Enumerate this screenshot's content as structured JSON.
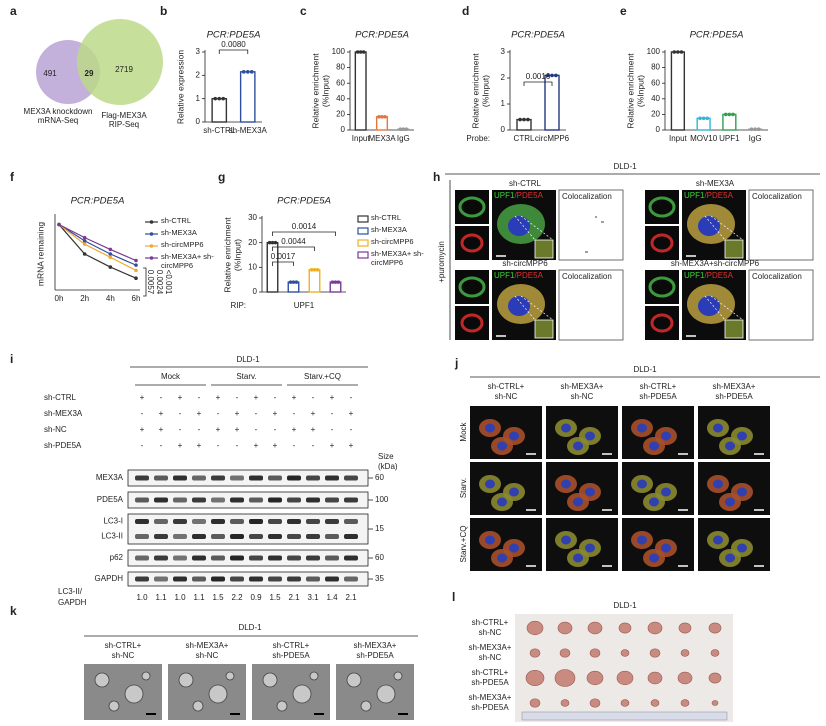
{
  "a": {
    "letter": "a",
    "left_count": 491,
    "overlap_count": 29,
    "right_count": 2719,
    "left_label": [
      "MEX3A knockdown",
      "mRNA-Seq"
    ],
    "right_label": [
      "Flag-MEX3A",
      "RIP-Seq"
    ]
  },
  "b": {
    "letter": "b",
    "type": "bar",
    "title": "PCR:PDE5A",
    "ylabel": [
      "Relative expression"
    ],
    "categories": [
      "sh-CTRL",
      "sh-MEX3A"
    ],
    "values": [
      1,
      2.15
    ],
    "colors": [
      "#333333",
      "#2e4f9e"
    ],
    "ylim": [
      0,
      3
    ],
    "yticks": [
      0,
      1,
      2,
      3
    ],
    "significance": [
      "0.0080"
    ]
  },
  "c": {
    "letter": "c",
    "type": "bar",
    "title": "PCR:PDE5A",
    "ylabel": [
      "Relative enrichment",
      "(%Input)"
    ],
    "categories": [
      "Input",
      "MEX3A",
      "IgG"
    ],
    "values": [
      100,
      17,
      1
    ],
    "colors": [
      "#333333",
      "#e8763a",
      "#999999"
    ],
    "ylim": [
      0,
      100
    ],
    "yticks": [
      0,
      20,
      40,
      60,
      80,
      100
    ]
  },
  "d": {
    "letter": "d",
    "type": "bar",
    "title": "PCR:PDE5A",
    "ylabel": [
      "Relative enrichment",
      "(%Input)"
    ],
    "axis_prefix": "Probe:",
    "categories": [
      "CTRL",
      "circMPP6"
    ],
    "values": [
      0.4,
      2.1
    ],
    "colors": [
      "#333333",
      "#23397e"
    ],
    "ylim": [
      0,
      3
    ],
    "yticks": [
      0,
      1,
      2,
      3
    ],
    "significance": [
      "0.0016"
    ]
  },
  "e": {
    "letter": "e",
    "type": "bar",
    "title": "PCR:PDE5A",
    "ylabel": [
      "Relative enrichment",
      "(%Input)"
    ],
    "categories": [
      "Input",
      "MOV10",
      "UPF1",
      "IgG"
    ],
    "values": [
      100,
      15,
      20,
      1
    ],
    "colors": [
      "#333333",
      "#2fb7d8",
      "#2ea04e",
      "#999999"
    ],
    "ylim": [
      0,
      100
    ],
    "yticks": [
      0,
      20,
      40,
      60,
      80,
      100
    ]
  },
  "f": {
    "letter": "f",
    "type": "line",
    "title": "PCR:PDE5A",
    "ylabel": "mRNA remaining",
    "categories": [
      "0h",
      "2h",
      "4h",
      "6h"
    ],
    "ylim": [
      0,
      1.1
    ],
    "series": [
      {
        "name": "sh-CTRL",
        "color": "#333333",
        "values": [
          1,
          0.55,
          0.35,
          0.18
        ]
      },
      {
        "name": "sh-MEX3A",
        "color": "#2e4f9e",
        "values": [
          1,
          0.75,
          0.55,
          0.38
        ]
      },
      {
        "name": "sh-circMPP6",
        "color": "#f0a830",
        "values": [
          1,
          0.7,
          0.5,
          0.3
        ]
      },
      {
        "name": "sh-MEX3A+ sh-circMPP6",
        "color": "#7b3a96",
        "values": [
          1,
          0.8,
          0.62,
          0.45
        ]
      }
    ],
    "p_values": [
      "0.0057",
      "0.0024",
      "<0.001"
    ]
  },
  "g": {
    "letter": "g",
    "type": "bar",
    "title": "PCR:PDE5A",
    "ylabel": [
      "Relative enrichment",
      "(%Input)"
    ],
    "axis_prefix": "RIP:",
    "axis_label": "UPF1",
    "categories": [
      "sh-CTRL",
      "sh-MEX3A",
      "sh-circMPP6",
      "sh-MEX3A+ sh-circMPP6"
    ],
    "values": [
      20,
      4,
      9,
      4
    ],
    "colors": [
      "#333333",
      "#2e4f9e",
      "#f0b020",
      "#7b3a96"
    ],
    "ylim": [
      0,
      30
    ],
    "yticks": [
      0,
      10,
      20,
      30
    ],
    "significance": [
      "0.0017",
      "0.0044",
      "0.0014"
    ]
  },
  "h": {
    "letter": "h",
    "cell_line": "DLD-1",
    "treatment": "+puromycin",
    "conditions": [
      "sh-CTRL",
      "sh-MEX3A",
      "sh-circMPP6",
      "sh-MEX3A+sh-circMPP6"
    ],
    "stain_green": "UPF1",
    "stain_red": "/PDE5A",
    "colocalization": "Colocalization"
  },
  "i": {
    "letter": "i",
    "cell_line": "DLD-1",
    "groups": [
      "Mock",
      "Starv.",
      "Starv.+CQ"
    ],
    "rows": [
      {
        "label": "sh-CTRL",
        "signs": [
          "+",
          "-",
          "+",
          "-",
          "+",
          "-",
          "+",
          "-",
          "+",
          "-",
          "+",
          "-"
        ]
      },
      {
        "label": "sh-MEX3A",
        "signs": [
          "-",
          "+",
          "-",
          "+",
          "-",
          "+",
          "-",
          "+",
          "-",
          "+",
          "-",
          "+"
        ]
      },
      {
        "label": "sh-NC",
        "signs": [
          "+",
          "+",
          "-",
          "-",
          "+",
          "+",
          "-",
          "-",
          "+",
          "+",
          "-",
          "-"
        ]
      },
      {
        "label": "sh-PDE5A",
        "signs": [
          "-",
          "-",
          "+",
          "+",
          "-",
          "-",
          "+",
          "+",
          "-",
          "-",
          "+",
          "+"
        ]
      }
    ],
    "size_header": [
      "Size",
      "(kDa)"
    ],
    "bands": [
      {
        "label": [
          "MEX3A"
        ],
        "size": 60
      },
      {
        "label": [
          "PDE5A"
        ],
        "size": 100
      },
      {
        "label": [
          "LC3-I",
          "LC3-II"
        ],
        "size": 15
      },
      {
        "label": [
          "p62"
        ],
        "size": 60
      },
      {
        "label": [
          "GAPDH"
        ],
        "size": 35
      }
    ],
    "ratio_label": [
      "LC3-II/",
      "GAPDH"
    ],
    "ratios": [
      "1.0",
      "1.1",
      "1.0",
      "1.1",
      "1.5",
      "2.2",
      "0.9",
      "1.5",
      "2.1",
      "3.1",
      "1.4",
      "2.1"
    ]
  },
  "j": {
    "letter": "j",
    "cell_line": "DLD-1",
    "columns": [
      [
        "sh-CTRL+",
        "sh-NC"
      ],
      [
        "sh-MEX3A+",
        "sh-NC"
      ],
      [
        "sh-CTRL+",
        "sh-PDE5A"
      ],
      [
        "sh-MEX3A+",
        "sh-PDE5A"
      ]
    ],
    "rows": [
      "Mock",
      "Starv.",
      "Starv.+CQ"
    ]
  },
  "k": {
    "letter": "k",
    "cell_line": "DLD-1",
    "columns": [
      [
        "sh-CTRL+",
        "sh-NC"
      ],
      [
        "sh-MEX3A+",
        "sh-NC"
      ],
      [
        "sh-CTRL+",
        "sh-PDE5A"
      ],
      [
        "sh-MEX3A+",
        "sh-PDE5A"
      ]
    ]
  },
  "l": {
    "letter": "l",
    "cell_line": "DLD-1",
    "rows": [
      [
        "sh-CTRL+",
        "sh-NC"
      ],
      [
        "sh-MEX3A+",
        "sh-NC"
      ],
      [
        "sh-CTRL+",
        "sh-PDE5A"
      ],
      [
        "sh-MEX3A+",
        "sh-PDE5A"
      ]
    ]
  }
}
